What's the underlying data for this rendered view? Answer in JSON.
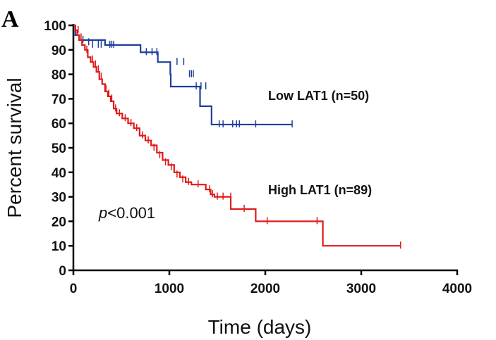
{
  "panel_label": "A",
  "chart_data": {
    "type": "line",
    "subtype": "kaplan-meier",
    "title": "",
    "xlabel": "Time (days)",
    "ylabel": "Percent survival",
    "xlim": [
      0,
      4000
    ],
    "ylim": [
      0,
      100
    ],
    "xticks": [
      0,
      1000,
      2000,
      3000,
      4000
    ],
    "yticks": [
      0,
      10,
      20,
      30,
      40,
      50,
      60,
      70,
      80,
      90,
      100
    ],
    "grid": false,
    "annotation": {
      "italic": "p",
      "rest": "<0.001"
    },
    "series": [
      {
        "name": "Low LAT1 (n=50)",
        "color": "#1f3f9a",
        "steps": [
          [
            0,
            100
          ],
          [
            20,
            96
          ],
          [
            60,
            94
          ],
          [
            330,
            92
          ],
          [
            700,
            89
          ],
          [
            880,
            85
          ],
          [
            1010,
            80
          ],
          [
            1015,
            75
          ],
          [
            1320,
            67
          ],
          [
            1440,
            59.5
          ],
          [
            2280,
            59.5
          ]
        ],
        "censored": [
          [
            100,
            94
          ],
          [
            160,
            93
          ],
          [
            200,
            92
          ],
          [
            260,
            92
          ],
          [
            290,
            92
          ],
          [
            380,
            92
          ],
          [
            400,
            92
          ],
          [
            420,
            92
          ],
          [
            760,
            89
          ],
          [
            820,
            89
          ],
          [
            870,
            89
          ],
          [
            1080,
            85
          ],
          [
            1150,
            85
          ],
          [
            1210,
            80
          ],
          [
            1230,
            80
          ],
          [
            1250,
            80
          ],
          [
            1280,
            75
          ],
          [
            1330,
            75
          ],
          [
            1380,
            75
          ],
          [
            1520,
            59.5
          ],
          [
            1560,
            59.5
          ],
          [
            1660,
            59.5
          ],
          [
            1700,
            59.5
          ],
          [
            1730,
            59.5
          ],
          [
            1900,
            59.5
          ],
          [
            2280,
            59.5
          ]
        ]
      },
      {
        "name": "High LAT1 (n=89)",
        "color": "#e01a1a",
        "steps": [
          [
            0,
            100
          ],
          [
            20,
            98
          ],
          [
            40,
            96
          ],
          [
            60,
            94
          ],
          [
            90,
            92
          ],
          [
            120,
            90
          ],
          [
            150,
            87
          ],
          [
            180,
            85
          ],
          [
            210,
            83
          ],
          [
            240,
            81
          ],
          [
            270,
            78
          ],
          [
            300,
            76
          ],
          [
            330,
            73
          ],
          [
            360,
            71
          ],
          [
            390,
            69
          ],
          [
            420,
            66
          ],
          [
            450,
            64
          ],
          [
            510,
            62
          ],
          [
            570,
            60
          ],
          [
            630,
            58
          ],
          [
            690,
            55
          ],
          [
            750,
            53
          ],
          [
            810,
            51
          ],
          [
            870,
            48
          ],
          [
            930,
            45
          ],
          [
            990,
            43
          ],
          [
            1050,
            40
          ],
          [
            1110,
            38
          ],
          [
            1170,
            36
          ],
          [
            1230,
            35
          ],
          [
            1380,
            33
          ],
          [
            1430,
            31
          ],
          [
            1470,
            30
          ],
          [
            1640,
            25
          ],
          [
            1900,
            20
          ],
          [
            2600,
            10
          ],
          [
            3410,
            10
          ]
        ],
        "censored": [
          [
            50,
            98
          ],
          [
            80,
            95
          ],
          [
            140,
            90
          ],
          [
            200,
            86
          ],
          [
            230,
            84
          ],
          [
            260,
            82
          ],
          [
            290,
            79
          ],
          [
            340,
            74
          ],
          [
            370,
            72
          ],
          [
            400,
            70
          ],
          [
            440,
            66
          ],
          [
            480,
            64
          ],
          [
            540,
            62
          ],
          [
            600,
            60
          ],
          [
            660,
            58
          ],
          [
            720,
            55
          ],
          [
            780,
            53
          ],
          [
            840,
            50
          ],
          [
            900,
            47
          ],
          [
            960,
            44
          ],
          [
            1020,
            42
          ],
          [
            1080,
            39
          ],
          [
            1140,
            37
          ],
          [
            1200,
            36
          ],
          [
            1300,
            35
          ],
          [
            1420,
            33
          ],
          [
            1450,
            31
          ],
          [
            1500,
            30
          ],
          [
            1560,
            30
          ],
          [
            1640,
            30
          ],
          [
            1780,
            25
          ],
          [
            2020,
            20
          ],
          [
            2540,
            20
          ],
          [
            3410,
            10
          ]
        ]
      }
    ]
  }
}
